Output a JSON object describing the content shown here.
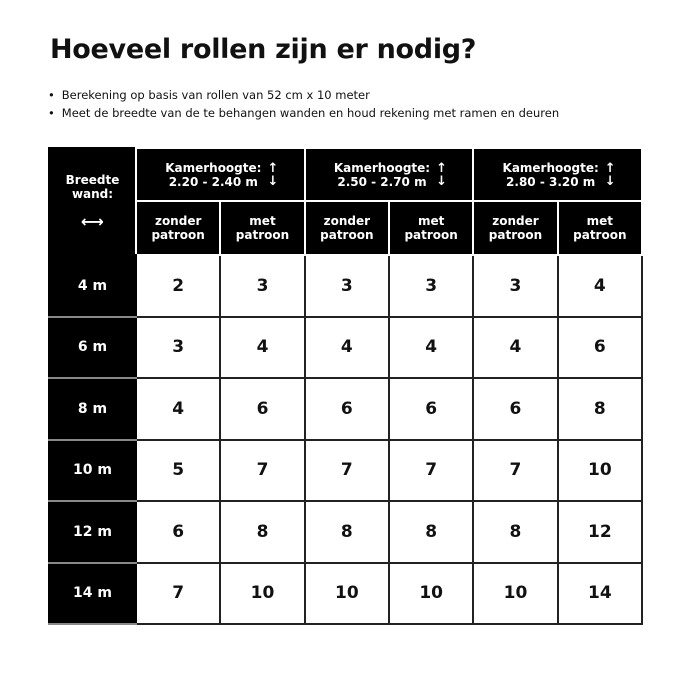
{
  "title": "Hoeveel rollen zijn er nodig?",
  "bullets": [
    "Berekening op basis van rollen van 52 cm x 10 meter",
    "Meet de breedte van de te behangen wanden en houd rekening met ramen en deuren"
  ],
  "corner": {
    "line1": "Breedte",
    "line2": "wand:",
    "icon": "horizontal-double-arrow-icon"
  },
  "groups": [
    {
      "label": "Kamerhoogte:",
      "range": "2.20 - 2.40 m",
      "icon": "vertical-double-arrow-icon"
    },
    {
      "label": "Kamerhoogte:",
      "range": "2.50 - 2.70 m",
      "icon": "vertical-double-arrow-icon"
    },
    {
      "label": "Kamerhoogte:",
      "range": "2.80 - 3.20 m",
      "icon": "vertical-double-arrow-icon"
    }
  ],
  "subheaders": [
    [
      "zonder",
      "patroon"
    ],
    [
      "met",
      "patroon"
    ]
  ],
  "rows": [
    {
      "width": "4 m",
      "values": [
        "2",
        "3",
        "3",
        "3",
        "3",
        "4"
      ]
    },
    {
      "width": "6 m",
      "values": [
        "3",
        "4",
        "4",
        "4",
        "4",
        "6"
      ]
    },
    {
      "width": "8 m",
      "values": [
        "4",
        "6",
        "6",
        "6",
        "6",
        "8"
      ]
    },
    {
      "width": "10 m",
      "values": [
        "5",
        "7",
        "7",
        "7",
        "7",
        "10"
      ]
    },
    {
      "width": "12 m",
      "values": [
        "6",
        "8",
        "8",
        "8",
        "8",
        "12"
      ]
    },
    {
      "width": "14 m",
      "values": [
        "7",
        "10",
        "10",
        "10",
        "10",
        "14"
      ]
    }
  ]
}
